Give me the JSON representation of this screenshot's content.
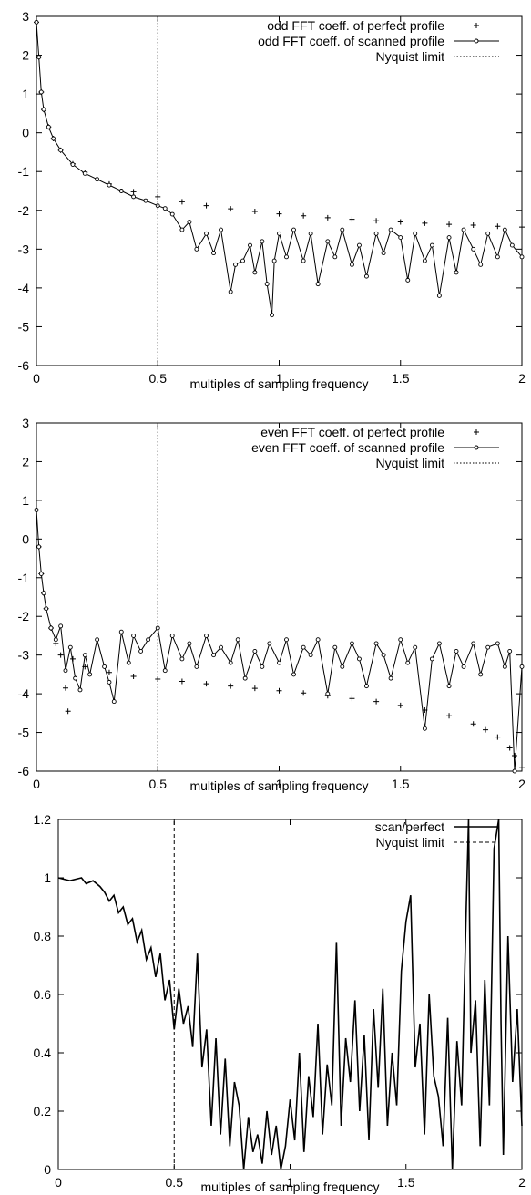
{
  "chart_data": [
    {
      "type": "scatter",
      "xlabel": "multiples of sampling frequency",
      "ylabel": "",
      "xlim": [
        0,
        2
      ],
      "ylim": [
        -6,
        3
      ],
      "x_ticks": [
        0,
        0.5,
        1,
        1.5,
        2
      ],
      "x_tick_labels": [
        "0",
        "0.5",
        "1",
        "1.5",
        "2"
      ],
      "y_ticks": [
        -6,
        -5,
        -4,
        -3,
        -2,
        -1,
        0,
        1,
        2,
        3
      ],
      "y_tick_labels": [
        "-6",
        "-5",
        "-4",
        "-3",
        "-2",
        "-1",
        "0",
        "1",
        "2",
        "3"
      ],
      "legend_position": "top-right",
      "grid": false,
      "series": [
        {
          "name": "odd FFT coeff. of perfect profile",
          "style": "plus-markers",
          "x": [
            0.0,
            0.01,
            0.02,
            0.03,
            0.05,
            0.07,
            0.1,
            0.15,
            0.2,
            0.3,
            0.4,
            0.5,
            0.6,
            0.7,
            0.8,
            0.9,
            1.0,
            1.1,
            1.2,
            1.3,
            1.4,
            1.5,
            1.6,
            1.7,
            1.8,
            1.9,
            2.0
          ],
          "values": [
            2.85,
            1.95,
            1.05,
            0.6,
            0.15,
            -0.15,
            -0.45,
            -0.8,
            -1.02,
            -1.32,
            -1.52,
            -1.65,
            -1.78,
            -1.88,
            -1.96,
            -2.03,
            -2.09,
            -2.14,
            -2.19,
            -2.23,
            -2.27,
            -2.3,
            -2.33,
            -2.36,
            -2.38,
            -2.41,
            -2.43
          ]
        },
        {
          "name": "odd FFT coeff. of scanned profile",
          "style": "line-with-circles",
          "x": [
            0.0,
            0.01,
            0.02,
            0.03,
            0.05,
            0.07,
            0.1,
            0.15,
            0.2,
            0.25,
            0.3,
            0.35,
            0.4,
            0.45,
            0.5,
            0.53,
            0.56,
            0.6,
            0.63,
            0.66,
            0.7,
            0.73,
            0.76,
            0.8,
            0.82,
            0.85,
            0.88,
            0.9,
            0.93,
            0.95,
            0.97,
            0.98,
            1.0,
            1.03,
            1.06,
            1.1,
            1.13,
            1.16,
            1.2,
            1.23,
            1.26,
            1.3,
            1.33,
            1.36,
            1.4,
            1.43,
            1.46,
            1.5,
            1.53,
            1.56,
            1.6,
            1.63,
            1.66,
            1.7,
            1.73,
            1.76,
            1.8,
            1.83,
            1.86,
            1.9,
            1.93,
            1.96,
            2.0
          ],
          "values": [
            2.85,
            1.95,
            1.05,
            0.6,
            0.15,
            -0.15,
            -0.45,
            -0.82,
            -1.05,
            -1.2,
            -1.35,
            -1.5,
            -1.65,
            -1.75,
            -1.88,
            -1.95,
            -2.1,
            -2.5,
            -2.3,
            -3.0,
            -2.6,
            -3.1,
            -2.5,
            -4.1,
            -3.4,
            -3.3,
            -2.9,
            -3.6,
            -2.8,
            -3.9,
            -4.7,
            -3.3,
            -2.6,
            -3.2,
            -2.5,
            -3.3,
            -2.6,
            -3.9,
            -2.8,
            -3.2,
            -2.5,
            -3.4,
            -2.9,
            -3.7,
            -2.6,
            -3.1,
            -2.5,
            -2.7,
            -3.8,
            -2.6,
            -3.3,
            -2.9,
            -4.2,
            -2.7,
            -3.6,
            -2.5,
            -3.0,
            -3.4,
            -2.6,
            -3.2,
            -2.5,
            -2.9,
            -3.2
          ]
        },
        {
          "name": "Nyquist limit",
          "style": "dotted-vertical",
          "x": [
            0.5,
            0.5
          ],
          "values": [
            -6,
            3
          ]
        }
      ]
    },
    {
      "type": "scatter",
      "xlabel": "multiples of sampling frequency",
      "ylabel": "",
      "xlim": [
        0,
        2
      ],
      "ylim": [
        -6,
        3
      ],
      "x_ticks": [
        0,
        0.5,
        1,
        1.5,
        2
      ],
      "x_tick_labels": [
        "0",
        "0.5",
        "1",
        "1.5",
        "2"
      ],
      "y_ticks": [
        -6,
        -5,
        -4,
        -3,
        -2,
        -1,
        0,
        1,
        2,
        3
      ],
      "y_tick_labels": [
        "-6",
        "-5",
        "-4",
        "-3",
        "-2",
        "-1",
        "0",
        "1",
        "2",
        "3"
      ],
      "legend_position": "top-right",
      "grid": false,
      "series": [
        {
          "name": "even FFT coeff. of perfect profile",
          "style": "plus-markers",
          "x": [
            0.0,
            0.01,
            0.02,
            0.03,
            0.04,
            0.06,
            0.08,
            0.1,
            0.12,
            0.13,
            0.15,
            0.2,
            0.3,
            0.4,
            0.5,
            0.6,
            0.7,
            0.8,
            0.9,
            1.0,
            1.1,
            1.2,
            1.3,
            1.4,
            1.5,
            1.6,
            1.7,
            1.8,
            1.85,
            1.9,
            1.95,
            1.97,
            2.0
          ],
          "values": [
            0.75,
            -0.2,
            -0.9,
            -1.4,
            -1.8,
            -2.3,
            -2.7,
            -3.0,
            -3.85,
            -4.45,
            -3.1,
            -3.3,
            -3.45,
            -3.55,
            -3.62,
            -3.68,
            -3.74,
            -3.8,
            -3.86,
            -3.92,
            -3.98,
            -4.05,
            -4.12,
            -4.2,
            -4.3,
            -4.42,
            -4.57,
            -4.78,
            -4.93,
            -5.12,
            -5.4,
            -5.6,
            -5.9
          ]
        },
        {
          "name": "even FFT coeff. of scanned profile",
          "style": "line-with-circles",
          "x": [
            0.0,
            0.01,
            0.02,
            0.03,
            0.04,
            0.06,
            0.08,
            0.1,
            0.12,
            0.14,
            0.16,
            0.18,
            0.2,
            0.22,
            0.25,
            0.28,
            0.3,
            0.32,
            0.35,
            0.38,
            0.4,
            0.43,
            0.46,
            0.5,
            0.53,
            0.56,
            0.6,
            0.63,
            0.66,
            0.7,
            0.73,
            0.76,
            0.8,
            0.83,
            0.86,
            0.9,
            0.93,
            0.96,
            1.0,
            1.03,
            1.06,
            1.1,
            1.13,
            1.16,
            1.2,
            1.23,
            1.26,
            1.3,
            1.33,
            1.36,
            1.4,
            1.43,
            1.46,
            1.5,
            1.53,
            1.56,
            1.6,
            1.63,
            1.66,
            1.7,
            1.73,
            1.76,
            1.8,
            1.83,
            1.86,
            1.9,
            1.93,
            1.95,
            1.97,
            2.0
          ],
          "values": [
            0.75,
            -0.2,
            -0.9,
            -1.4,
            -1.8,
            -2.3,
            -2.6,
            -2.25,
            -3.4,
            -2.8,
            -3.6,
            -3.9,
            -3.0,
            -3.5,
            -2.6,
            -3.3,
            -3.7,
            -4.2,
            -2.4,
            -3.2,
            -2.5,
            -2.9,
            -2.6,
            -2.3,
            -3.4,
            -2.5,
            -3.1,
            -2.7,
            -3.3,
            -2.5,
            -3.0,
            -2.8,
            -3.2,
            -2.6,
            -3.6,
            -2.9,
            -3.3,
            -2.7,
            -3.2,
            -2.6,
            -3.5,
            -2.8,
            -3.0,
            -2.6,
            -4.0,
            -2.8,
            -3.3,
            -2.7,
            -3.1,
            -3.8,
            -2.7,
            -3.0,
            -3.6,
            -2.6,
            -3.2,
            -2.8,
            -4.9,
            -3.1,
            -2.7,
            -3.8,
            -2.9,
            -3.3,
            -2.7,
            -3.5,
            -2.8,
            -2.7,
            -3.3,
            -2.9,
            -6.0,
            -3.3
          ]
        },
        {
          "name": "Nyquist limit",
          "style": "dotted-vertical",
          "x": [
            0.5,
            0.5
          ],
          "values": [
            -6,
            3
          ]
        }
      ]
    },
    {
      "type": "line",
      "xlabel": "multiples of sampling frequency",
      "ylabel": "",
      "xlim": [
        0,
        2
      ],
      "ylim": [
        0,
        1.2
      ],
      "x_ticks": [
        0,
        0.5,
        1,
        1.5,
        2
      ],
      "x_tick_labels": [
        "0",
        "0.5",
        "1",
        "1.5",
        "2"
      ],
      "y_ticks": [
        0,
        0.2,
        0.4,
        0.6,
        0.8,
        1,
        1.2
      ],
      "y_tick_labels": [
        "0",
        "0.2",
        "0.4",
        "0.6",
        "0.8",
        "1",
        "1.2"
      ],
      "legend_position": "top-right",
      "grid": false,
      "series": [
        {
          "name": "scan/perfect",
          "style": "solid-line",
          "x": [
            0.0,
            0.05,
            0.1,
            0.12,
            0.15,
            0.18,
            0.2,
            0.22,
            0.24,
            0.26,
            0.28,
            0.3,
            0.32,
            0.34,
            0.36,
            0.38,
            0.4,
            0.42,
            0.44,
            0.46,
            0.48,
            0.5,
            0.52,
            0.54,
            0.56,
            0.58,
            0.6,
            0.62,
            0.64,
            0.66,
            0.68,
            0.7,
            0.72,
            0.74,
            0.76,
            0.78,
            0.8,
            0.82,
            0.84,
            0.86,
            0.88,
            0.9,
            0.92,
            0.94,
            0.96,
            0.98,
            1.0,
            1.02,
            1.04,
            1.06,
            1.08,
            1.1,
            1.12,
            1.14,
            1.16,
            1.18,
            1.2,
            1.22,
            1.24,
            1.26,
            1.28,
            1.3,
            1.32,
            1.34,
            1.36,
            1.38,
            1.4,
            1.42,
            1.44,
            1.46,
            1.48,
            1.5,
            1.52,
            1.54,
            1.56,
            1.58,
            1.6,
            1.62,
            1.64,
            1.66,
            1.68,
            1.7,
            1.72,
            1.74,
            1.76,
            1.77,
            1.78,
            1.8,
            1.82,
            1.84,
            1.86,
            1.88,
            1.9,
            1.91,
            1.92,
            1.94,
            1.96,
            1.98,
            2.0
          ],
          "values": [
            1.0,
            0.99,
            1.0,
            0.98,
            0.99,
            0.97,
            0.95,
            0.92,
            0.94,
            0.88,
            0.9,
            0.84,
            0.86,
            0.78,
            0.82,
            0.72,
            0.76,
            0.66,
            0.74,
            0.58,
            0.65,
            0.48,
            0.62,
            0.5,
            0.56,
            0.42,
            0.74,
            0.35,
            0.48,
            0.15,
            0.45,
            0.12,
            0.38,
            0.08,
            0.3,
            0.22,
            0.0,
            0.18,
            0.06,
            0.12,
            0.02,
            0.2,
            0.05,
            0.15,
            0.0,
            0.08,
            0.24,
            0.1,
            0.4,
            0.06,
            0.32,
            0.18,
            0.5,
            0.12,
            0.36,
            0.22,
            0.78,
            0.15,
            0.45,
            0.3,
            0.58,
            0.2,
            0.46,
            0.1,
            0.55,
            0.28,
            0.62,
            0.15,
            0.4,
            0.22,
            0.68,
            0.85,
            0.94,
            0.35,
            0.5,
            0.12,
            0.6,
            0.32,
            0.25,
            0.08,
            0.52,
            0.0,
            0.44,
            0.22,
            0.9,
            1.2,
            0.4,
            0.58,
            0.08,
            0.65,
            0.22,
            1.1,
            1.2,
            0.5,
            0.05,
            0.8,
            0.3,
            0.55,
            0.15
          ]
        },
        {
          "name": "Nyquist limit",
          "style": "dashed-vertical",
          "x": [
            0.5,
            0.5
          ],
          "values": [
            0,
            1.2
          ]
        }
      ]
    }
  ]
}
